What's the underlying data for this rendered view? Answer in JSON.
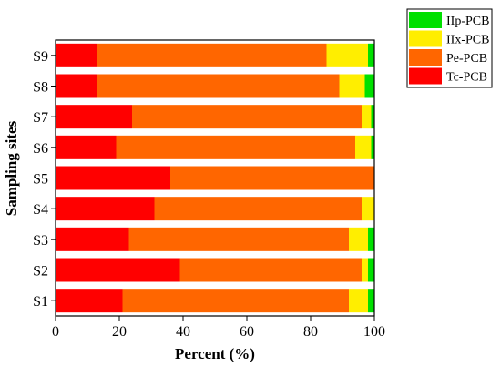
{
  "chart_data": {
    "type": "bar",
    "orientation": "horizontal",
    "stacked": true,
    "xlabel": "Percent (%)",
    "ylabel": "Sampling sites",
    "xlim": [
      0,
      100
    ],
    "xticks": [
      0,
      20,
      40,
      60,
      80,
      100
    ],
    "grid": false,
    "legend_position": "top-right-outside",
    "categories": [
      "S1",
      "S2",
      "S3",
      "S4",
      "S5",
      "S6",
      "S7",
      "S8",
      "S9"
    ],
    "series": [
      {
        "name": "Tc-PCB",
        "color": "#ff0000",
        "values": [
          21,
          39,
          23,
          31,
          36,
          19,
          24,
          13,
          13
        ]
      },
      {
        "name": "Pe-PCB",
        "color": "#ff6600",
        "values": [
          71,
          57,
          69,
          65,
          64,
          75,
          72,
          76,
          72
        ]
      },
      {
        "name": "IIx-PCB",
        "color": "#ffee00",
        "values": [
          6,
          2,
          6,
          4,
          0,
          5,
          3,
          8,
          13
        ]
      },
      {
        "name": "IIp-PCB",
        "color": "#00e000",
        "values": [
          2,
          2,
          2,
          0,
          0,
          1,
          1,
          3,
          2
        ]
      }
    ],
    "legend_order": [
      "IIp-PCB",
      "IIx-PCB",
      "Pe-PCB",
      "Tc-PCB"
    ]
  }
}
